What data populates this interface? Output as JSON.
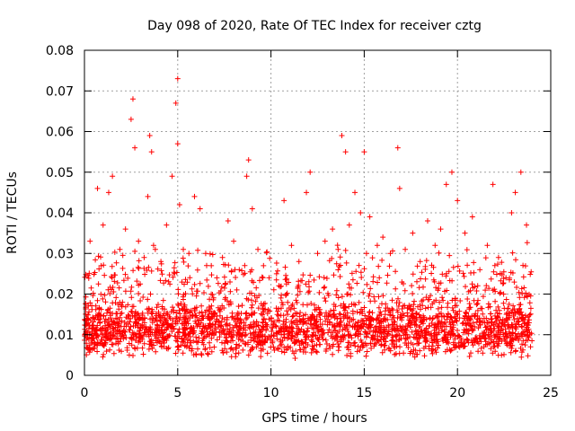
{
  "chart_data": {
    "type": "scatter",
    "title": "Day 098 of 2020, Rate Of TEC Index for receiver cztg",
    "xlabel": "GPS time / hours",
    "ylabel": "ROTI / TECUs",
    "xlim": [
      0,
      25
    ],
    "ylim": [
      0,
      0.08
    ],
    "xticks": [
      "0",
      "5",
      "10",
      "15",
      "20",
      "25"
    ],
    "yticks": [
      "0",
      "0.01",
      "0.02",
      "0.03",
      "0.04",
      "0.05",
      "0.06",
      "0.07",
      "0.08"
    ],
    "grid": true,
    "marker": "+",
    "series": [
      {
        "name": "ROTI",
        "color": "#ff0000",
        "x": [
          0.3,
          0.7,
          1.0,
          1.3,
          1.5,
          1.9,
          2.2,
          2.5,
          2.6,
          2.7,
          2.9,
          3.2,
          3.4,
          3.5,
          3.6,
          3.8,
          4.1,
          4.4,
          4.7,
          4.9,
          5.0,
          5.0,
          5.1,
          5.3,
          5.6,
          5.9,
          6.2,
          6.5,
          6.8,
          7.1,
          7.4,
          7.7,
          8.0,
          8.3,
          8.7,
          8.8,
          9.0,
          9.3,
          9.6,
          9.9,
          10.3,
          10.7,
          11.1,
          11.5,
          11.9,
          12.1,
          12.5,
          12.9,
          13.3,
          13.6,
          13.8,
          14.0,
          14.2,
          14.5,
          14.8,
          15.0,
          15.3,
          15.7,
          16.0,
          16.4,
          16.8,
          16.9,
          17.2,
          17.6,
          18.0,
          18.4,
          18.8,
          19.1,
          19.4,
          19.7,
          20.0,
          20.4,
          20.8,
          21.2,
          21.6,
          21.9,
          22.2,
          22.6,
          22.9,
          23.1,
          23.4,
          23.7
        ],
        "y": [
          0.033,
          0.046,
          0.037,
          0.045,
          0.049,
          0.031,
          0.036,
          0.063,
          0.068,
          0.056,
          0.033,
          0.029,
          0.044,
          0.059,
          0.055,
          0.031,
          0.028,
          0.037,
          0.049,
          0.067,
          0.073,
          0.057,
          0.042,
          0.031,
          0.03,
          0.044,
          0.041,
          0.03,
          0.027,
          0.024,
          0.029,
          0.038,
          0.033,
          0.026,
          0.049,
          0.053,
          0.041,
          0.031,
          0.027,
          0.024,
          0.025,
          0.043,
          0.032,
          0.028,
          0.045,
          0.05,
          0.03,
          0.033,
          0.036,
          0.031,
          0.059,
          0.055,
          0.037,
          0.045,
          0.04,
          0.055,
          0.039,
          0.032,
          0.034,
          0.03,
          0.056,
          0.046,
          0.031,
          0.035,
          0.028,
          0.038,
          0.032,
          0.036,
          0.047,
          0.05,
          0.043,
          0.035,
          0.039,
          0.026,
          0.032,
          0.047,
          0.029,
          0.024,
          0.04,
          0.045,
          0.05,
          0.037
        ]
      }
    ],
    "baseline_band": {
      "low": 0.004,
      "high": 0.018,
      "note": "dense band of points across 0–24 h"
    }
  }
}
